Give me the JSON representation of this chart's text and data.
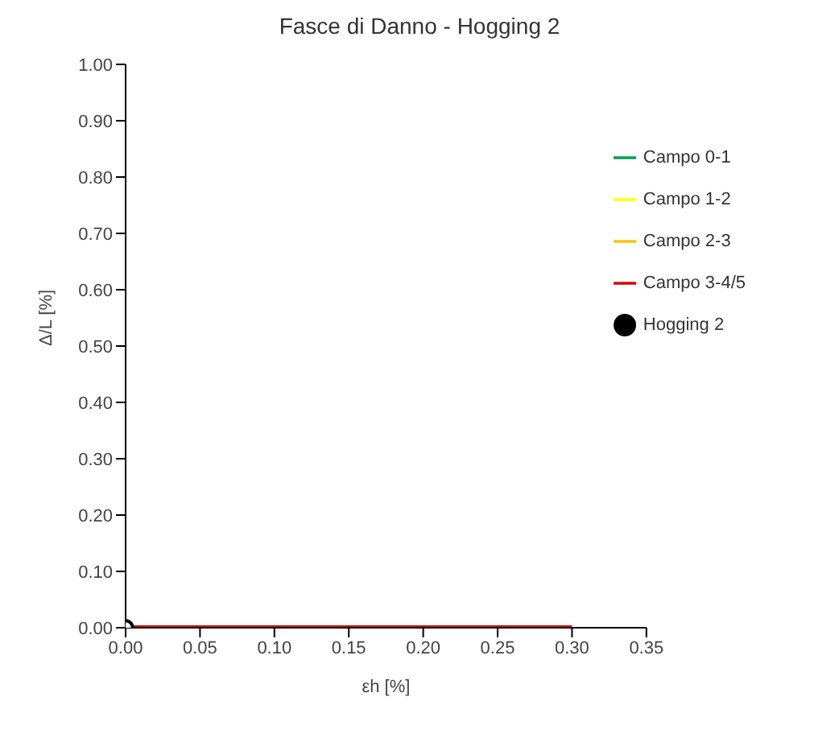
{
  "chart_data": {
    "type": "line",
    "title": "Fasce di Danno - Hogging 2",
    "xlabel": "εh [%]",
    "ylabel": "Δ/L [%]",
    "x": [
      0,
      0.3
    ],
    "series": [
      {
        "name": "Campo 0-1",
        "color": "#00a050",
        "values": [
          null,
          null
        ]
      },
      {
        "name": "Campo 1-2",
        "color": "#ffff00",
        "values": [
          null,
          null
        ]
      },
      {
        "name": "Campo 2-3",
        "color": "#ffc000",
        "values": [
          null,
          null
        ]
      },
      {
        "name": "Campo 3-4/5",
        "color": "#e00000",
        "values": [
          0,
          0
        ]
      },
      {
        "name": "Hogging 2",
        "type": "scatter",
        "color": "#000000",
        "x": [
          0
        ],
        "values": [
          0
        ],
        "marker": "circle"
      }
    ],
    "xlim": [
      0,
      0.35
    ],
    "xticks": [
      {
        "value": 0,
        "label": "0.00"
      },
      {
        "value": 0.05,
        "label": "0.05"
      },
      {
        "value": 0.1,
        "label": "0.10"
      },
      {
        "value": 0.15,
        "label": "0.15"
      },
      {
        "value": 0.2,
        "label": "0.20"
      },
      {
        "value": 0.25,
        "label": "0.25"
      },
      {
        "value": 0.3,
        "label": "0.30"
      },
      {
        "value": 0.35,
        "label": "0.35"
      }
    ],
    "ylim": [
      0,
      1
    ],
    "yticks": [
      {
        "value": 0,
        "label": "0.00"
      },
      {
        "value": 0.1,
        "label": "0.10"
      },
      {
        "value": 0.2,
        "label": "0.20"
      },
      {
        "value": 0.3,
        "label": "0.30"
      },
      {
        "value": 0.4,
        "label": "0.40"
      },
      {
        "value": 0.5,
        "label": "0.50"
      },
      {
        "value": 0.6,
        "label": "0.60"
      },
      {
        "value": 0.7,
        "label": "0.70"
      },
      {
        "value": 0.8,
        "label": "0.80"
      },
      {
        "value": 0.9,
        "label": "0.90"
      },
      {
        "value": 1,
        "label": "1.00"
      }
    ],
    "legend": "top right",
    "grid": false
  }
}
